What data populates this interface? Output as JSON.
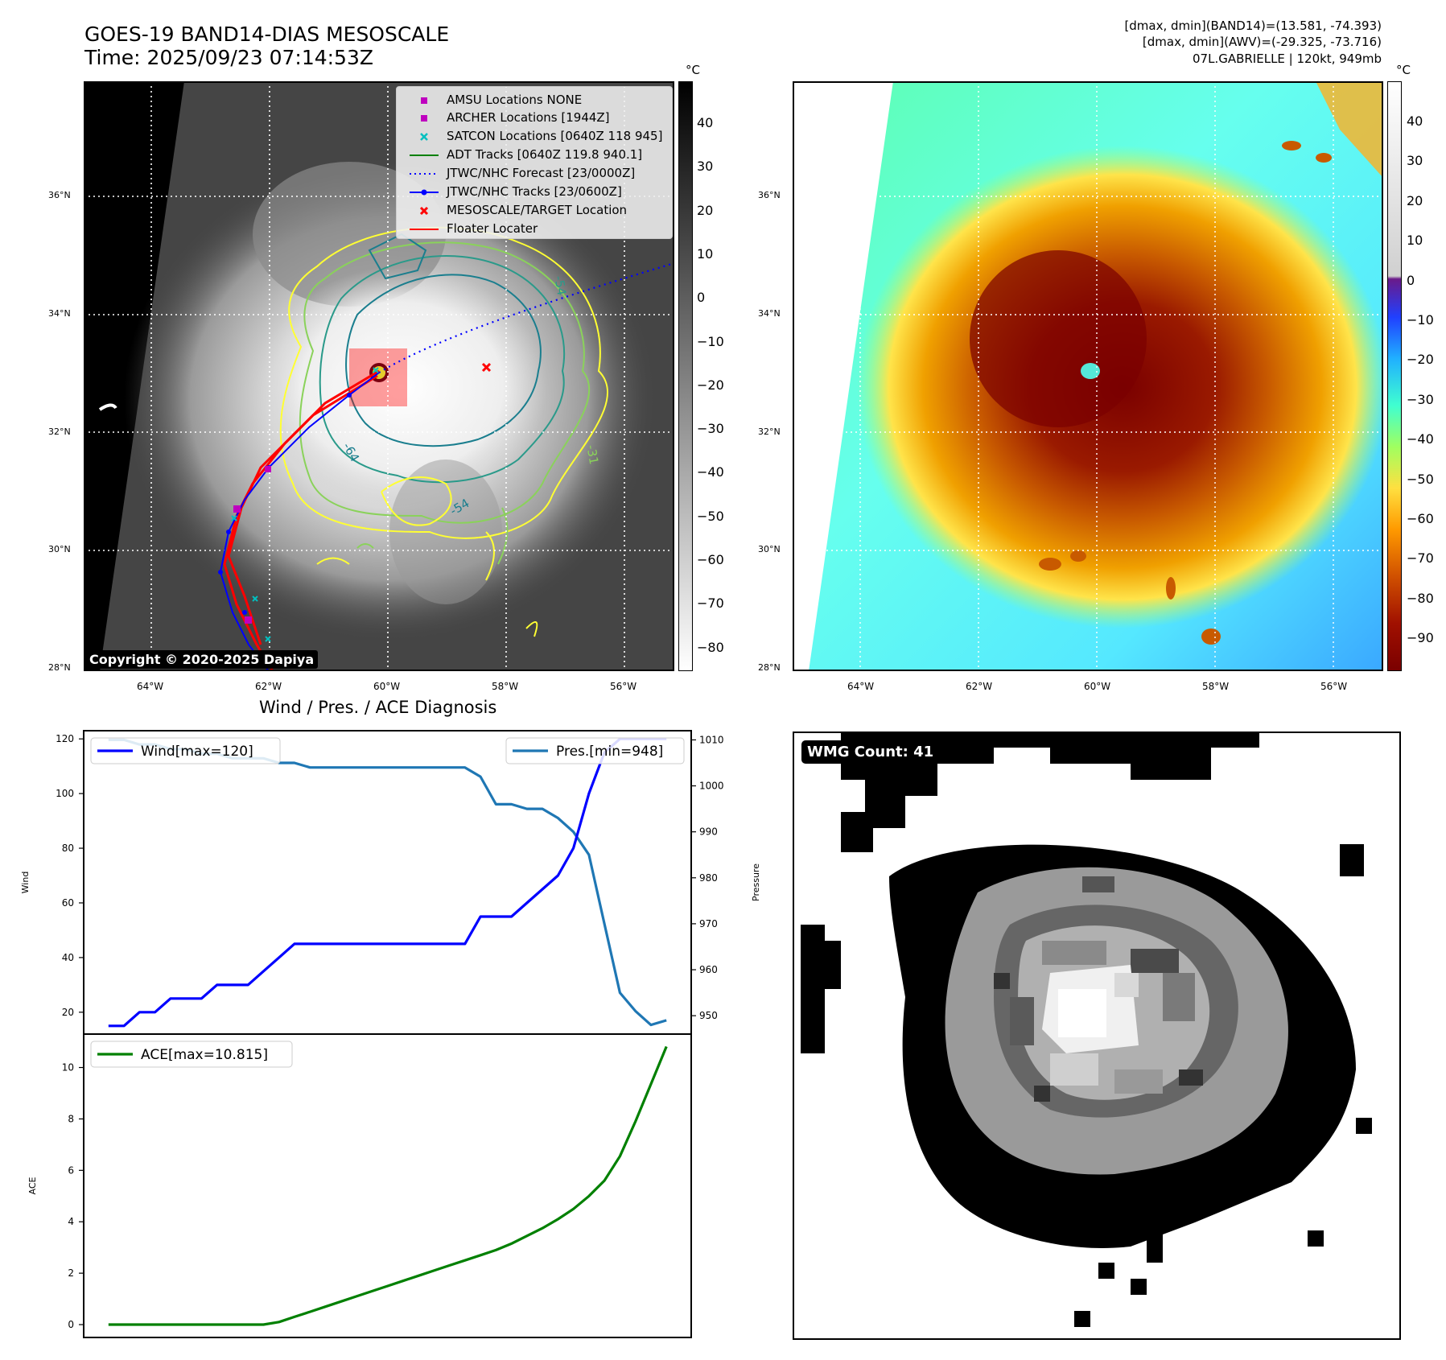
{
  "header": {
    "title_line1": "GOES-19 BAND14-DIAS MESOSCALE",
    "title_line2": "Time: 2025/09/23 07:14:53Z",
    "info_line1": "[dmax, dmin](BAND14)=(13.581, -74.393)",
    "info_line2": "[dmax, dmin](AWV)=(-29.325, -73.716)",
    "info_line3": "07L.GABRIELLE | 120kt, 949mb"
  },
  "map_axes": {
    "lat_labels": [
      "36°N",
      "34°N",
      "32°N",
      "30°N",
      "28°N"
    ],
    "lon_labels": [
      "64°W",
      "62°W",
      "60°W",
      "58°W",
      "56°W"
    ]
  },
  "ir_panel": {
    "unit": "°C",
    "colorbar_ticks": [
      "40",
      "30",
      "20",
      "10",
      "0",
      "−10",
      "−20",
      "−30",
      "−40",
      "−50",
      "−60",
      "−70",
      "−80"
    ],
    "copyright": "Copyright © 2020-2025 Dapiya",
    "contour_labels": [
      "-64",
      "-54",
      "-54",
      "-31"
    ],
    "legend": [
      {
        "label": "AMSU Locations NONE",
        "symbol": "square",
        "color": "#bf00bf"
      },
      {
        "label": "ARCHER Locations [1944Z]",
        "symbol": "square",
        "color": "#bf00bf"
      },
      {
        "label": "SATCON Locations [0640Z 118 945]",
        "symbol": "x",
        "color": "#00bfbf"
      },
      {
        "label": "ADT Tracks [0640Z 119.8 940.1]",
        "symbol": "line",
        "color": "#008000"
      },
      {
        "label": "JTWC/NHC Forecast [23/0000Z]",
        "symbol": "dotted",
        "color": "#0000ff"
      },
      {
        "label": "JTWC/NHC Tracks [23/0600Z]",
        "symbol": "line-dot",
        "color": "#0000ff"
      },
      {
        "label": "MESOSCALE/TARGET Location",
        "symbol": "x",
        "color": "#ff0000"
      },
      {
        "label": "Floater Locater",
        "symbol": "line",
        "color": "#ff0000"
      }
    ]
  },
  "awv_panel": {
    "unit": "°C",
    "colorbar_ticks": [
      "40",
      "30",
      "20",
      "10",
      "0",
      "−10",
      "−20",
      "−30",
      "−40",
      "−50",
      "−60",
      "−70",
      "−80",
      "−90"
    ]
  },
  "wmg_panel": {
    "label": "WMG Count: 41"
  },
  "chart_data": [
    {
      "type": "line",
      "title": "Wind / Pres. / ACE Diagnosis",
      "ylabel_left": "Wind",
      "ylabel_right": "Pressure",
      "x": [
        0,
        1,
        2,
        3,
        4,
        5,
        6,
        7,
        8,
        9,
        10,
        11,
        12,
        13,
        14,
        15,
        16,
        17,
        18,
        19,
        20,
        21,
        22,
        23,
        24,
        25,
        26,
        27,
        28,
        29,
        30,
        31,
        32,
        33,
        34,
        35,
        36
      ],
      "series": [
        {
          "name": "Wind[max=120]",
          "axis": "left",
          "color": "#0000ff",
          "values": [
            15,
            15,
            20,
            20,
            25,
            25,
            25,
            30,
            30,
            30,
            35,
            40,
            45,
            45,
            45,
            45,
            45,
            45,
            45,
            45,
            45,
            45,
            45,
            45,
            55,
            55,
            55,
            60,
            65,
            70,
            80,
            100,
            115,
            120,
            120,
            120,
            120
          ]
        },
        {
          "name": "Pres.[min=948]",
          "axis": "right",
          "color": "#1f77b4",
          "values": [
            1010,
            1010,
            1009,
            1009,
            1008,
            1008,
            1007,
            1007,
            1006,
            1006,
            1006,
            1005,
            1005,
            1004,
            1004,
            1004,
            1004,
            1004,
            1004,
            1004,
            1004,
            1004,
            1004,
            1004,
            1002,
            996,
            996,
            995,
            995,
            993,
            990,
            985,
            970,
            955,
            951,
            948,
            949
          ]
        }
      ],
      "ylim_left": [
        12,
        123
      ],
      "ylim_right": [
        946,
        1012
      ],
      "yticks_left": [
        20,
        40,
        60,
        80,
        100,
        120
      ],
      "yticks_right": [
        950,
        960,
        970,
        980,
        990,
        1000,
        1010
      ],
      "legend_left": "upper left",
      "legend_right": "upper right"
    },
    {
      "type": "line",
      "ylabel": "ACE",
      "x": [
        0,
        1,
        2,
        3,
        4,
        5,
        6,
        7,
        8,
        9,
        10,
        11,
        12,
        13,
        14,
        15,
        16,
        17,
        18,
        19,
        20,
        21,
        22,
        23,
        24,
        25,
        26,
        27,
        28,
        29,
        30,
        31,
        32,
        33,
        34,
        35,
        36
      ],
      "series": [
        {
          "name": "ACE[max=10.815]",
          "color": "#008000",
          "values": [
            0,
            0,
            0,
            0,
            0,
            0,
            0,
            0,
            0,
            0,
            0,
            0.1,
            0.3,
            0.5,
            0.7,
            0.9,
            1.1,
            1.3,
            1.5,
            1.7,
            1.9,
            2.1,
            2.3,
            2.5,
            2.7,
            2.9,
            3.15,
            3.45,
            3.75,
            4.1,
            4.5,
            5.0,
            5.6,
            6.55,
            7.9,
            9.35,
            10.815
          ]
        }
      ],
      "ylim": [
        -0.5,
        11.3
      ],
      "yticks": [
        0,
        2,
        4,
        6,
        8,
        10
      ],
      "legend": "upper left"
    }
  ]
}
